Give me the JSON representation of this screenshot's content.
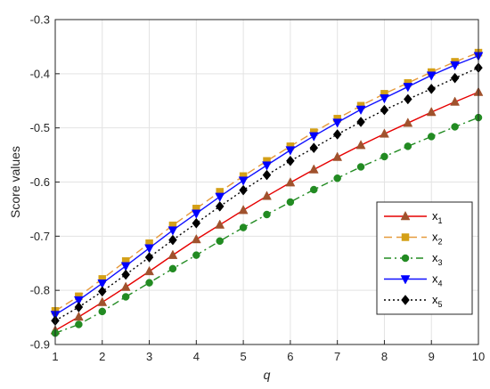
{
  "chart_data": {
    "type": "line",
    "title": "",
    "xlabel": "q",
    "ylabel": "Score values",
    "xlim": [
      1,
      10
    ],
    "ylim": [
      -0.9,
      -0.3
    ],
    "xticks": [
      "1",
      "2",
      "3",
      "4",
      "5",
      "6",
      "7",
      "8",
      "9",
      "10"
    ],
    "yticks": [
      "-0.3",
      "-0.4",
      "-0.5",
      "-0.6",
      "-0.7",
      "-0.8",
      "-0.9"
    ],
    "grid": true,
    "legend_position": "bottom-right",
    "x": [
      1,
      1.5,
      2,
      2.5,
      3,
      3.5,
      4,
      4.5,
      5,
      5.5,
      6,
      6.5,
      7,
      7.5,
      8,
      8.5,
      9,
      9.5,
      10
    ],
    "series": [
      {
        "name": "x1",
        "label_main": "x",
        "label_sub": "1",
        "color": "#e60000",
        "marker": "triangle-up",
        "marker_color": "#a0522d",
        "dash": "solid",
        "values": [
          -0.874,
          -0.849,
          -0.822,
          -0.794,
          -0.765,
          -0.735,
          -0.706,
          -0.679,
          -0.652,
          -0.626,
          -0.601,
          -0.577,
          -0.554,
          -0.532,
          -0.511,
          -0.491,
          -0.471,
          -0.452,
          -0.434
        ]
      },
      {
        "name": "x2",
        "label_main": "x",
        "label_sub": "2",
        "color": "#e69a3c",
        "marker": "square",
        "marker_color": "#d4a017",
        "dash": "dashed",
        "values": [
          -0.838,
          -0.811,
          -0.779,
          -0.746,
          -0.713,
          -0.68,
          -0.649,
          -0.618,
          -0.589,
          -0.561,
          -0.534,
          -0.508,
          -0.483,
          -0.459,
          -0.437,
          -0.417,
          -0.397,
          -0.378,
          -0.361
        ]
      },
      {
        "name": "x3",
        "label_main": "x",
        "label_sub": "3",
        "color": "#228b22",
        "marker": "circle",
        "marker_color": "#228b22",
        "dash": "dashdot",
        "values": [
          -0.879,
          -0.863,
          -0.839,
          -0.812,
          -0.786,
          -0.76,
          -0.735,
          -0.709,
          -0.684,
          -0.66,
          -0.637,
          -0.614,
          -0.593,
          -0.572,
          -0.553,
          -0.534,
          -0.516,
          -0.498,
          -0.481
        ]
      },
      {
        "name": "x4",
        "label_main": "x",
        "label_sub": "4",
        "color": "#1010ff",
        "marker": "triangle-down",
        "marker_color": "#0000ff",
        "dash": "solid",
        "values": [
          -0.845,
          -0.818,
          -0.787,
          -0.755,
          -0.722,
          -0.689,
          -0.658,
          -0.627,
          -0.597,
          -0.569,
          -0.541,
          -0.515,
          -0.49,
          -0.466,
          -0.445,
          -0.424,
          -0.403,
          -0.384,
          -0.367
        ]
      },
      {
        "name": "x5",
        "label_main": "x",
        "label_sub": "5",
        "color": "#000000",
        "marker": "diamond",
        "marker_color": "#000000",
        "dash": "dotted",
        "values": [
          -0.856,
          -0.831,
          -0.802,
          -0.771,
          -0.739,
          -0.707,
          -0.676,
          -0.645,
          -0.615,
          -0.587,
          -0.561,
          -0.537,
          -0.512,
          -0.489,
          -0.467,
          -0.447,
          -0.428,
          -0.408,
          -0.389
        ]
      }
    ]
  }
}
